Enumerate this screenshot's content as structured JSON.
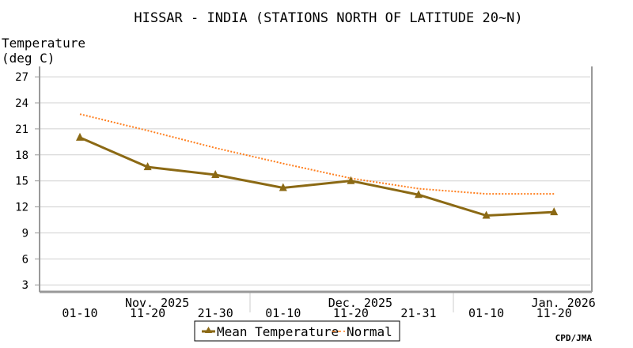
{
  "chart_data": {
    "type": "line",
    "title": "HISSAR - INDIA (STATIONS NORTH OF LATITUDE 20~N)",
    "ylabel": [
      "Temperature",
      "(deg C)"
    ],
    "ylim": [
      2.2,
      28.2
    ],
    "yticks": [
      3,
      6,
      9,
      12,
      15,
      18,
      21,
      24,
      27
    ],
    "grid": true,
    "categories": [
      "01-10",
      "11-20",
      "21-30",
      "01-10",
      "11-20",
      "21-31",
      "01-10",
      "11-20"
    ],
    "months": [
      {
        "label": "Nov. 2025",
        "center_index": 1
      },
      {
        "label": "Dec. 2025",
        "center_index": 4
      },
      {
        "label": "Jan. 2026",
        "center_index": 7
      }
    ],
    "series": [
      {
        "name": "Mean Temperature",
        "color": "#8b6914",
        "style": "solid-triangle",
        "values": [
          20.0,
          16.6,
          15.7,
          14.2,
          15.0,
          13.4,
          11.0,
          11.4
        ]
      },
      {
        "name": "Normal",
        "color": "#ff7f1e",
        "style": "dashed",
        "values": [
          22.7,
          20.8,
          18.8,
          17.0,
          15.3,
          14.1,
          13.5,
          13.5
        ]
      }
    ],
    "legend": "bottom-center",
    "credit": "CPD/JMA"
  }
}
